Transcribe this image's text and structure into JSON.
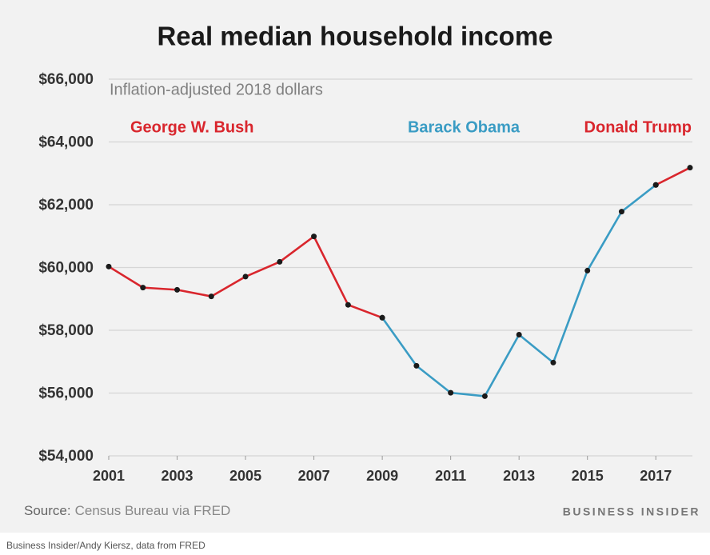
{
  "chart_data": {
    "type": "line",
    "title": "Real median household income",
    "subtitle": "Inflation-adjusted 2018 dollars",
    "x": [
      2001,
      2002,
      2003,
      2004,
      2005,
      2006,
      2007,
      2008,
      2009,
      2010,
      2011,
      2012,
      2013,
      2014,
      2015,
      2016,
      2017,
      2018
    ],
    "series": [
      {
        "name": "George W. Bush",
        "color": "#d9262d",
        "values": [
          60030,
          59360,
          59290,
          59080,
          59710,
          60180,
          60990,
          58810,
          58400,
          null,
          null,
          null,
          null,
          null,
          null,
          null,
          null,
          null
        ]
      },
      {
        "name": "Barack Obama",
        "color": "#3a9cc4",
        "values": [
          null,
          null,
          null,
          null,
          null,
          null,
          null,
          null,
          58400,
          56870,
          56010,
          55900,
          57860,
          56970,
          59900,
          61780,
          62630,
          null
        ]
      },
      {
        "name": "Donald Trump",
        "color": "#d9262d",
        "values": [
          null,
          null,
          null,
          null,
          null,
          null,
          null,
          null,
          null,
          null,
          null,
          null,
          null,
          null,
          null,
          null,
          62630,
          63180
        ]
      }
    ],
    "xlim": [
      2001,
      2018
    ],
    "xticks": [
      2001,
      2003,
      2005,
      2007,
      2009,
      2011,
      2013,
      2015,
      2017
    ],
    "ylim": [
      54000,
      66000
    ],
    "yticks": [
      {
        "value": 54000,
        "label": "$54,000"
      },
      {
        "value": 56000,
        "label": "$56,000"
      },
      {
        "value": 58000,
        "label": "$58,000"
      },
      {
        "value": 60000,
        "label": "$60,000"
      },
      {
        "value": 62000,
        "label": "$62,000"
      },
      {
        "value": 64000,
        "label": "$64,000"
      },
      {
        "value": 66000,
        "label": "$66,000"
      }
    ],
    "grid": true,
    "marker_color": "#1a1a1a",
    "source_label": "Source:",
    "source": "Census Bureau via FRED",
    "brand": "BUSINESS INSIDER",
    "credit": "Business Insider/Andy Kiersz, data from FRED"
  }
}
